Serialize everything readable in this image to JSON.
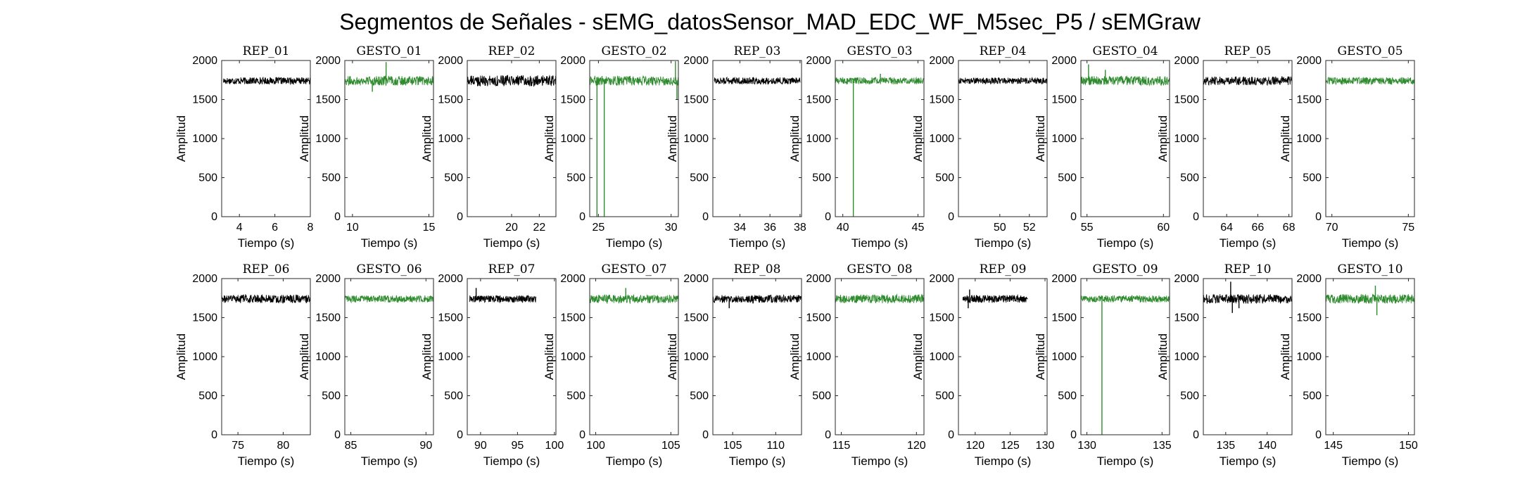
{
  "figure": {
    "title": "Segmentos de Señales - sEMG_datosSensor_MAD_EDC_WF_M5sec_P5 / sEMGraw"
  },
  "colors": {
    "rep": "#000000",
    "gesto": "#2e8b2e",
    "axes": "#262626"
  },
  "chart_data": [
    {
      "type": "line",
      "title": "REP_01",
      "kind": "rep",
      "xlabel": "Tiempo (s)",
      "ylabel": "Amplitud",
      "xlim": [
        3,
        8
      ],
      "ylim": [
        0,
        2000
      ],
      "xticks": [
        4,
        6,
        8
      ],
      "yticks": [
        0,
        500,
        1000,
        1500,
        2000
      ],
      "series": [
        {
          "x": [
            3.1,
            8.0
          ],
          "baseline": 1740,
          "noise": 45,
          "spikes": []
        }
      ]
    },
    {
      "type": "line",
      "title": "GESTO_01",
      "kind": "gesto",
      "xlabel": "Tiempo (s)",
      "ylabel": "Amplitud",
      "xlim": [
        9.5,
        15.3
      ],
      "ylim": [
        0,
        2000
      ],
      "xticks": [
        10,
        15
      ],
      "yticks": [
        0,
        500,
        1000,
        1500,
        2000
      ],
      "series": [
        {
          "x": [
            9.5,
            15.3
          ],
          "baseline": 1740,
          "noise": 60,
          "spikes": [
            [
              12.2,
              1980
            ],
            [
              11.3,
              1600
            ]
          ]
        }
      ]
    },
    {
      "type": "line",
      "title": "REP_02",
      "kind": "rep",
      "xlabel": "Tiempo (s)",
      "ylabel": "Amplitud",
      "xlim": [
        16.8,
        23.2
      ],
      "ylim": [
        0,
        2000
      ],
      "xticks": [
        20,
        22
      ],
      "yticks": [
        0,
        500,
        1000,
        1500,
        2000
      ],
      "series": [
        {
          "x": [
            16.8,
            23.2
          ],
          "baseline": 1740,
          "noise": 70,
          "spikes": []
        }
      ]
    },
    {
      "type": "line",
      "title": "GESTO_02",
      "kind": "gesto",
      "xlabel": "Tiempo (s)",
      "ylabel": "Amplitud",
      "xlim": [
        24.4,
        30.5
      ],
      "ylim": [
        0,
        2000
      ],
      "xticks": [
        25,
        30
      ],
      "yticks": [
        0,
        500,
        1000,
        1500,
        2000
      ],
      "series": [
        {
          "x": [
            24.4,
            30.5
          ],
          "baseline": 1740,
          "noise": 60,
          "spikes": [
            [
              24.9,
              0
            ],
            [
              25.4,
              0
            ],
            [
              30.3,
              1990
            ],
            [
              30.4,
              1500
            ]
          ]
        }
      ]
    },
    {
      "type": "line",
      "title": "REP_03",
      "kind": "rep",
      "xlabel": "Tiempo (s)",
      "ylabel": "Amplitud",
      "xlim": [
        32.2,
        38.1
      ],
      "ylim": [
        0,
        2000
      ],
      "xticks": [
        34,
        36,
        38
      ],
      "yticks": [
        0,
        500,
        1000,
        1500,
        2000
      ],
      "series": [
        {
          "x": [
            32.3,
            38.0
          ],
          "baseline": 1740,
          "noise": 45,
          "spikes": []
        }
      ]
    },
    {
      "type": "line",
      "title": "GESTO_03",
      "kind": "gesto",
      "xlabel": "Tiempo (s)",
      "ylabel": "Amplitud",
      "xlim": [
        39.5,
        45.4
      ],
      "ylim": [
        0,
        2000
      ],
      "xticks": [
        40,
        45
      ],
      "yticks": [
        0,
        500,
        1000,
        1500,
        2000
      ],
      "series": [
        {
          "x": [
            39.5,
            45.4
          ],
          "baseline": 1740,
          "noise": 45,
          "spikes": [
            [
              40.7,
              0
            ],
            [
              42.5,
              1830
            ]
          ]
        }
      ]
    },
    {
      "type": "line",
      "title": "REP_04",
      "kind": "rep",
      "xlabel": "Tiempo (s)",
      "ylabel": "Amplitud",
      "xlim": [
        47.2,
        53.2
      ],
      "ylim": [
        0,
        2000
      ],
      "xticks": [
        50,
        52
      ],
      "yticks": [
        0,
        500,
        1000,
        1500,
        2000
      ],
      "series": [
        {
          "x": [
            47.2,
            53.2
          ],
          "baseline": 1740,
          "noise": 40,
          "spikes": []
        }
      ]
    },
    {
      "type": "line",
      "title": "GESTO_04",
      "kind": "gesto",
      "xlabel": "Tiempo (s)",
      "ylabel": "Amplitud",
      "xlim": [
        54.6,
        60.4
      ],
      "ylim": [
        0,
        2000
      ],
      "xticks": [
        55,
        60
      ],
      "yticks": [
        0,
        500,
        1000,
        1500,
        2000
      ],
      "series": [
        {
          "x": [
            54.6,
            60.4
          ],
          "baseline": 1740,
          "noise": 60,
          "spikes": [
            [
              55.1,
              1950
            ],
            [
              56.2,
              1880
            ]
          ]
        }
      ]
    },
    {
      "type": "line",
      "title": "REP_05",
      "kind": "rep",
      "xlabel": "Tiempo (s)",
      "ylabel": "Amplitud",
      "xlim": [
        62.5,
        68.2
      ],
      "ylim": [
        0,
        2000
      ],
      "xticks": [
        64,
        66,
        68
      ],
      "yticks": [
        0,
        500,
        1000,
        1500,
        2000
      ],
      "series": [
        {
          "x": [
            62.5,
            68.2
          ],
          "baseline": 1740,
          "noise": 55,
          "spikes": []
        }
      ]
    },
    {
      "type": "line",
      "title": "GESTO_05",
      "kind": "gesto",
      "xlabel": "Tiempo (s)",
      "ylabel": "Amplitud",
      "xlim": [
        69.6,
        75.4
      ],
      "ylim": [
        0,
        2000
      ],
      "xticks": [
        70,
        75
      ],
      "yticks": [
        0,
        500,
        1000,
        1500,
        2000
      ],
      "series": [
        {
          "x": [
            69.6,
            75.4
          ],
          "baseline": 1740,
          "noise": 45,
          "spikes": []
        }
      ]
    },
    {
      "type": "line",
      "title": "REP_06",
      "kind": "rep",
      "xlabel": "Tiempo (s)",
      "ylabel": "Amplitud",
      "xlim": [
        73.2,
        83.0
      ],
      "ylim": [
        0,
        2000
      ],
      "xticks": [
        75,
        80
      ],
      "yticks": [
        0,
        500,
        1000,
        1500,
        2000
      ],
      "series": [
        {
          "x": [
            73.2,
            83.0
          ],
          "baseline": 1740,
          "noise": 55,
          "spikes": []
        }
      ]
    },
    {
      "type": "line",
      "title": "GESTO_06",
      "kind": "gesto",
      "xlabel": "Tiempo (s)",
      "ylabel": "Amplitud",
      "xlim": [
        84.6,
        90.5
      ],
      "ylim": [
        0,
        2000
      ],
      "xticks": [
        85,
        90
      ],
      "yticks": [
        0,
        500,
        1000,
        1500,
        2000
      ],
      "series": [
        {
          "x": [
            84.6,
            90.5
          ],
          "baseline": 1740,
          "noise": 45,
          "spikes": []
        }
      ]
    },
    {
      "type": "line",
      "title": "REP_07",
      "kind": "rep",
      "xlabel": "Tiempo (s)",
      "ylabel": "Amplitud",
      "xlim": [
        88.2,
        100.2
      ],
      "ylim": [
        0,
        2000
      ],
      "xticks": [
        90,
        95,
        100
      ],
      "yticks": [
        0,
        500,
        1000,
        1500,
        2000
      ],
      "series": [
        {
          "x": [
            88.5,
            97.5
          ],
          "baseline": 1740,
          "noise": 45,
          "spikes": [
            [
              89.4,
              1880
            ]
          ]
        }
      ]
    },
    {
      "type": "line",
      "title": "GESTO_07",
      "kind": "gesto",
      "xlabel": "Tiempo (s)",
      "ylabel": "Amplitud",
      "xlim": [
        99.6,
        105.5
      ],
      "ylim": [
        0,
        2000
      ],
      "xticks": [
        100,
        105
      ],
      "yticks": [
        0,
        500,
        1000,
        1500,
        2000
      ],
      "series": [
        {
          "x": [
            99.6,
            105.5
          ],
          "baseline": 1740,
          "noise": 55,
          "spikes": [
            [
              102.0,
              1880
            ]
          ]
        }
      ]
    },
    {
      "type": "line",
      "title": "REP_08",
      "kind": "rep",
      "xlabel": "Tiempo (s)",
      "ylabel": "Amplitud",
      "xlim": [
        102.7,
        113.0
      ],
      "ylim": [
        0,
        2000
      ],
      "xticks": [
        105,
        110
      ],
      "yticks": [
        0,
        500,
        1000,
        1500,
        2000
      ],
      "series": [
        {
          "x": [
            102.7,
            113.0
          ],
          "baseline": 1740,
          "noise": 50,
          "spikes": [
            [
              104.6,
              1620
            ]
          ]
        }
      ]
    },
    {
      "type": "line",
      "title": "GESTO_08",
      "kind": "gesto",
      "xlabel": "Tiempo (s)",
      "ylabel": "Amplitud",
      "xlim": [
        114.6,
        120.5
      ],
      "ylim": [
        0,
        2000
      ],
      "xticks": [
        115,
        120
      ],
      "yticks": [
        0,
        500,
        1000,
        1500,
        2000
      ],
      "series": [
        {
          "x": [
            114.6,
            120.5
          ],
          "baseline": 1740,
          "noise": 55,
          "spikes": []
        }
      ]
    },
    {
      "type": "line",
      "title": "REP_09",
      "kind": "rep",
      "xlabel": "Tiempo (s)",
      "ylabel": "Amplitud",
      "xlim": [
        117.6,
        130.3
      ],
      "ylim": [
        0,
        2000
      ],
      "xticks": [
        120,
        125,
        130
      ],
      "yticks": [
        0,
        500,
        1000,
        1500,
        2000
      ],
      "series": [
        {
          "x": [
            118.2,
            127.5
          ],
          "baseline": 1740,
          "noise": 50,
          "spikes": [
            [
              119.0,
              1620
            ],
            [
              119.2,
              1860
            ]
          ]
        }
      ]
    },
    {
      "type": "line",
      "title": "GESTO_09",
      "kind": "gesto",
      "xlabel": "Tiempo (s)",
      "ylabel": "Amplitud",
      "xlim": [
        129.6,
        135.5
      ],
      "ylim": [
        0,
        2000
      ],
      "xticks": [
        130,
        135
      ],
      "yticks": [
        0,
        500,
        1000,
        1500,
        2000
      ],
      "series": [
        {
          "x": [
            129.6,
            135.5
          ],
          "baseline": 1740,
          "noise": 45,
          "spikes": [
            [
              131.0,
              0
            ]
          ]
        }
      ]
    },
    {
      "type": "line",
      "title": "REP_10",
      "kind": "rep",
      "xlabel": "Tiempo (s)",
      "ylabel": "Amplitud",
      "xlim": [
        132.3,
        143.0
      ],
      "ylim": [
        0,
        2000
      ],
      "xticks": [
        135,
        140
      ],
      "yticks": [
        0,
        500,
        1000,
        1500,
        2000
      ],
      "series": [
        {
          "x": [
            132.3,
            143.0
          ],
          "baseline": 1740,
          "noise": 60,
          "spikes": [
            [
              135.6,
              1960
            ],
            [
              135.8,
              1560
            ],
            [
              136.6,
              1620
            ]
          ]
        }
      ]
    },
    {
      "type": "line",
      "title": "GESTO_10",
      "kind": "gesto",
      "xlabel": "Tiempo (s)",
      "ylabel": "Amplitud",
      "xlim": [
        144.5,
        150.4
      ],
      "ylim": [
        0,
        2000
      ],
      "xticks": [
        145,
        150
      ],
      "yticks": [
        0,
        500,
        1000,
        1500,
        2000
      ],
      "series": [
        {
          "x": [
            144.5,
            150.4
          ],
          "baseline": 1740,
          "noise": 60,
          "spikes": [
            [
              147.8,
              1910
            ],
            [
              147.9,
              1530
            ]
          ]
        }
      ]
    }
  ]
}
